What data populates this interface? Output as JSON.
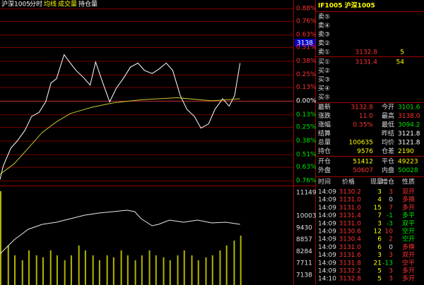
{
  "header": {
    "symbol": "沪深1005",
    "tabs": [
      "分时",
      "均线",
      "成交量",
      "持仓量"
    ],
    "cursor_price": "3138"
  },
  "chart_data": [
    {
      "type": "line",
      "xlim": [
        0,
        270
      ],
      "ylim": [
        -0.76,
        0.88
      ],
      "yticks": [
        {
          "value": 0.88,
          "label": "0.88%"
        },
        {
          "value": 0.76,
          "label": "0.76%"
        },
        {
          "value": 0.63,
          "label": "0.63%"
        },
        {
          "value": 0.51,
          "label": "0.51%"
        },
        {
          "value": 0.38,
          "label": "0.38%"
        },
        {
          "value": 0.25,
          "label": "0.25%"
        },
        {
          "value": 0.13,
          "label": "0.13%"
        },
        {
          "value": 0,
          "label": "0.00%"
        },
        {
          "value": -0.13,
          "label": "0.13%"
        },
        {
          "value": -0.25,
          "label": "0.25%"
        },
        {
          "value": -0.38,
          "label": "0.38%"
        },
        {
          "value": -0.51,
          "label": "0.51%"
        },
        {
          "value": -0.63,
          "label": "0.63%"
        },
        {
          "value": -0.76,
          "label": "0.76%"
        }
      ],
      "grid": true,
      "series": [
        {
          "name": "分时",
          "color": "#ffffff",
          "x": [
            0,
            3,
            10,
            16,
            23,
            29,
            36,
            42,
            47,
            52,
            59,
            64,
            70,
            77,
            83,
            88,
            94,
            101,
            107,
            114,
            120,
            127,
            133,
            140,
            146,
            153,
            159,
            166,
            172,
            179,
            185,
            192,
            198,
            205,
            211,
            216,
            221
          ],
          "values": [
            -0.75,
            -0.62,
            -0.45,
            -0.38,
            -0.28,
            -0.15,
            -0.11,
            -0.01,
            0.17,
            0.21,
            0.44,
            0.37,
            0.29,
            0.22,
            0.15,
            0.37,
            0.19,
            -0.01,
            0.12,
            0.22,
            0.32,
            0.36,
            0.29,
            0.26,
            0.3,
            0.36,
            0.29,
            0.05,
            -0.08,
            -0.15,
            -0.26,
            -0.22,
            -0.08,
            0.02,
            -0.05,
            0.05,
            0.36
          ]
        },
        {
          "name": "均线",
          "color": "#c8c832",
          "x": [
            0,
            13,
            26,
            39,
            52,
            65,
            85,
            104,
            130,
            163,
            195,
            221
          ],
          "values": [
            -0.7,
            -0.6,
            -0.45,
            -0.3,
            -0.2,
            -0.12,
            -0.06,
            -0.02,
            0.01,
            0.03,
            0,
            0.02
          ]
        }
      ]
    },
    {
      "type": "line",
      "xlim": [
        0,
        270
      ],
      "ylim": [
        6650,
        11450
      ],
      "yticks": [
        11149,
        10003,
        9430,
        8857,
        8284,
        7711,
        7138
      ],
      "series": [
        {
          "name": "持仓量",
          "color": "#e8e8e8",
          "x": [
            0,
            13,
            26,
            39,
            52,
            65,
            78,
            91,
            104,
            117,
            124,
            130,
            140,
            146,
            156,
            169,
            182,
            195,
            208,
            221
          ],
          "values": [
            8158,
            8844,
            9359,
            9599,
            9701,
            9873,
            10044,
            10147,
            10216,
            10284,
            10216,
            9873,
            9530,
            9599,
            9804,
            9701,
            9804,
            9667,
            9701,
            9599
          ]
        }
      ]
    },
    {
      "type": "bar",
      "xlim": [
        0,
        270
      ],
      "ylim": [
        0,
        100
      ],
      "color": "#b4b400",
      "x": [
        0,
        7,
        13,
        20,
        26,
        33,
        39,
        46,
        52,
        59,
        65,
        72,
        78,
        85,
        91,
        98,
        104,
        111,
        117,
        124,
        130,
        137,
        143,
        150,
        156,
        163,
        169,
        176,
        182,
        189,
        195,
        202,
        208,
        215,
        221
      ],
      "values": [
        95,
        40,
        30,
        25,
        35,
        30,
        28,
        35,
        30,
        25,
        30,
        40,
        35,
        30,
        25,
        30,
        28,
        35,
        30,
        25,
        30,
        35,
        30,
        28,
        25,
        30,
        35,
        30,
        25,
        28,
        30,
        35,
        40,
        45,
        50
      ]
    }
  ],
  "quote": {
    "title": "IF1005 沪深1005",
    "asks": [
      {
        "label": "卖⑤"
      },
      {
        "label": "卖④"
      },
      {
        "label": "卖③"
      },
      {
        "label": "卖②"
      },
      {
        "label": "卖①",
        "price": "3132.8",
        "volume": "5"
      }
    ],
    "bids": [
      {
        "label": "买①",
        "price": "3131.4",
        "volume": "54"
      },
      {
        "label": "买②"
      },
      {
        "label": "买③"
      },
      {
        "label": "买④"
      },
      {
        "label": "买⑤"
      }
    ],
    "stats": [
      {
        "label": "最新",
        "value": "3132.8",
        "color": "#ff3232",
        "label2": "今开",
        "value2": "3101.6",
        "color2": "#00e600"
      },
      {
        "label": "涨跌",
        "value": "11.0",
        "color": "#ff3232",
        "label2": "最高",
        "value2": "3138.0",
        "color2": "#ff3232"
      },
      {
        "label": "涨幅",
        "value": "0.35%",
        "color": "#ff3232",
        "label2": "最低",
        "value2": "3094.2",
        "color2": "#00e600"
      },
      {
        "label": "结算",
        "label2": "昨结",
        "value2": "3121.8",
        "color2": "#ffffff"
      },
      {
        "label": "总量",
        "value": "100635",
        "color": "#ffff00",
        "label2": "均价",
        "value2": "3121.8",
        "color2": "#ffffff"
      },
      {
        "label": "持仓",
        "value": "9576",
        "color": "#ffff00",
        "label2": "仓差",
        "value2": "2190",
        "color2": "#ffff00"
      },
      {
        "label": "开仓",
        "value": "51412",
        "color": "#ffff00",
        "label2": "平仓",
        "value2": "49223",
        "color2": "#ffff00"
      },
      {
        "label": "外盘",
        "value": "50607",
        "color": "#ff3232",
        "label2": "内盘",
        "value2": "50028",
        "color2": "#00e600"
      }
    ],
    "trade_headers": [
      "时间",
      "价格",
      "现量",
      "增仓",
      "性质"
    ],
    "trades": [
      {
        "time": "14:09",
        "price": "3130.2",
        "volume": "3",
        "change": "3",
        "type": "双开",
        "type_color": "#ff3232"
      },
      {
        "time": "14:09",
        "price": "3131.0",
        "volume": "4",
        "change": "0",
        "type": "多换",
        "type_color": "#ff3232"
      },
      {
        "time": "14:09",
        "price": "3131.0",
        "volume": "15",
        "change": "7",
        "type": "多开",
        "type_color": "#ff3232"
      },
      {
        "time": "14:09",
        "price": "3131.4",
        "volume": "7",
        "change": "-1",
        "type": "多平",
        "type_color": "#00e600"
      },
      {
        "time": "14:09",
        "price": "3131.0",
        "volume": "3",
        "change": "-3",
        "type": "双平",
        "type_color": "#00e600"
      },
      {
        "time": "14:09",
        "price": "3130.6",
        "volume": "12",
        "change": "10",
        "type": "空开",
        "type_color": "#00e600"
      },
      {
        "time": "14:09",
        "price": "3130.4",
        "volume": "6",
        "change": "2",
        "type": "空开",
        "type_color": "#00e600"
      },
      {
        "time": "14:09",
        "price": "3131.0",
        "volume": "6",
        "change": "0",
        "type": "多换",
        "type_color": "#ff3232"
      },
      {
        "time": "14:09",
        "price": "3131.6",
        "volume": "3",
        "change": "3",
        "type": "双开",
        "type_color": "#ff3232"
      },
      {
        "time": "14:09",
        "price": "3131.8",
        "volume": "21",
        "change": "-13",
        "type": "空平",
        "type_color": "#ff3232"
      },
      {
        "time": "14:09",
        "price": "3132.2",
        "volume": "5",
        "change": "3",
        "type": "多开",
        "type_color": "#ff3232"
      },
      {
        "time": "14:10",
        "price": "3132.8",
        "volume": "5",
        "change": "3",
        "type": "多开",
        "type_color": "#ff3232"
      }
    ]
  }
}
